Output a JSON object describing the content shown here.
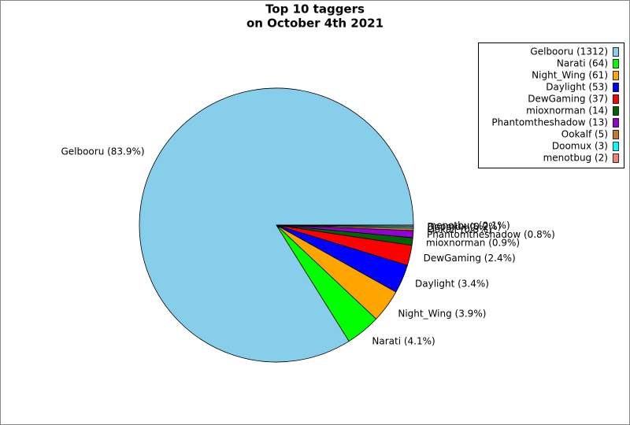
{
  "chart_data": {
    "type": "pie",
    "title": [
      "Top 10 taggers",
      "on October 4th 2021"
    ],
    "values": [
      1312,
      64,
      61,
      53,
      37,
      14,
      13,
      5,
      3,
      2
    ],
    "legend_labels": [
      "Gelbooru (1312)",
      "Narati (64)",
      "Night_Wing (61)",
      "Daylight (53)",
      "DewGaming (37)",
      "mioxnorman (14)",
      "Phantomtheshadow (13)",
      "Ookalf (5)",
      "Doomux (3)",
      "menotbug (2)"
    ],
    "value_labels": [
      "Gelbooru (83.9%)",
      "Narati (4.1%)",
      "Night_Wing (3.9%)",
      "Daylight (3.4%)",
      "DewGaming (2.4%)",
      "mioxnorman (0.9%)",
      "Phantomtheshadow (0.8%)",
      "Ookalf (0.3%)",
      "Doomux (0.2%)",
      "menotbug (0.1%)"
    ],
    "colors": [
      "#87ceeb",
      "#00ff00",
      "#ffa500",
      "#0000ff",
      "#ff0000",
      "#006400",
      "#9400d3",
      "#c87533",
      "#00ffff",
      "#fa8072"
    ],
    "legend": "upper right"
  }
}
